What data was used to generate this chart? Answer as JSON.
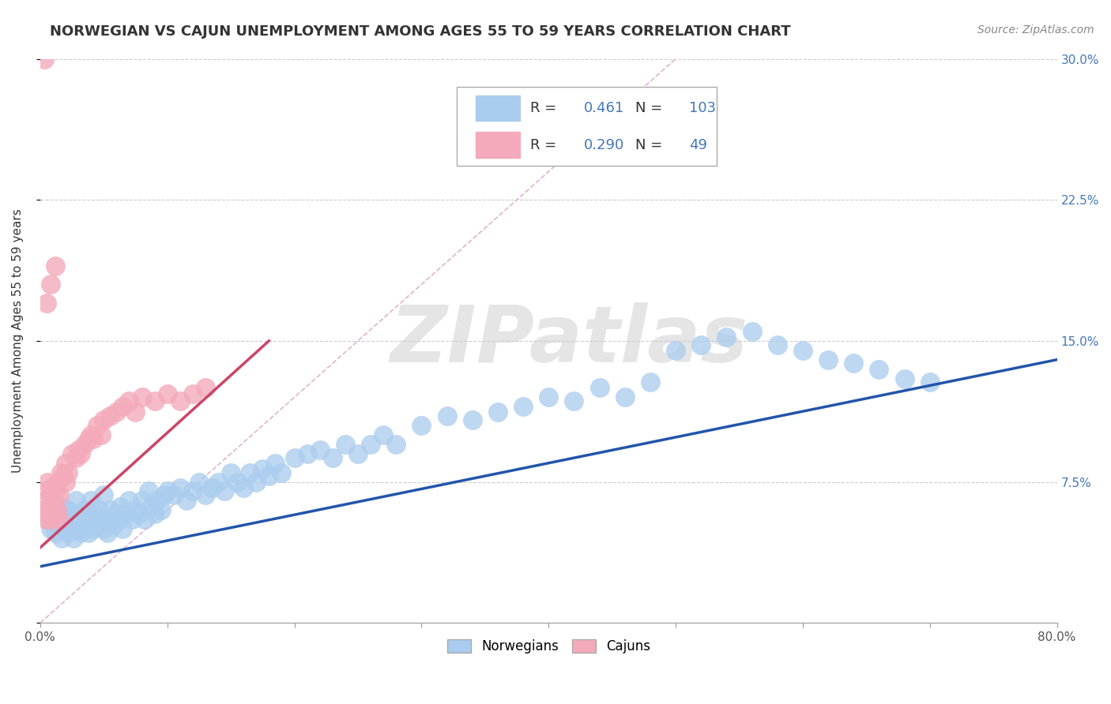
{
  "title": "NORWEGIAN VS CAJUN UNEMPLOYMENT AMONG AGES 55 TO 59 YEARS CORRELATION CHART",
  "source": "Source: ZipAtlas.com",
  "ylabel": "Unemployment Among Ages 55 to 59 years",
  "xlim": [
    0,
    0.8
  ],
  "ylim": [
    0,
    0.3
  ],
  "xticks": [
    0.0,
    0.1,
    0.2,
    0.3,
    0.4,
    0.5,
    0.6,
    0.7,
    0.8
  ],
  "xticklabels_show": [
    "0.0%",
    "",
    "",
    "",
    "",
    "",
    "",
    "",
    "80.0%"
  ],
  "yticks": [
    0.0,
    0.075,
    0.15,
    0.225,
    0.3
  ],
  "yticklabels_right": [
    "",
    "7.5%",
    "15.0%",
    "22.5%",
    "30.0%"
  ],
  "norwegian_color": "#aaccee",
  "cajun_color": "#f4aabb",
  "norwegian_line_color": "#2255aa",
  "cajun_line_color": "#cc4466",
  "ref_line_color": "#ddaacc",
  "legend_R_norwegian": "0.461",
  "legend_N_norwegian": "103",
  "legend_R_cajun": "0.290",
  "legend_N_cajun": "49",
  "watermark": "ZIPatlas",
  "norwegian_trend_x": [
    0.0,
    0.8
  ],
  "norwegian_trend_y": [
    0.03,
    0.14
  ],
  "cajun_trend_x": [
    0.0,
    0.18
  ],
  "cajun_trend_y": [
    0.04,
    0.15
  ],
  "ref_line_x": [
    0.0,
    0.5
  ],
  "ref_line_y": [
    0.0,
    0.3
  ],
  "norwegian_points_x": [
    0.005,
    0.008,
    0.01,
    0.012,
    0.015,
    0.015,
    0.017,
    0.018,
    0.02,
    0.02,
    0.022,
    0.022,
    0.025,
    0.025,
    0.026,
    0.028,
    0.03,
    0.03,
    0.032,
    0.033,
    0.035,
    0.036,
    0.038,
    0.04,
    0.04,
    0.042,
    0.043,
    0.045,
    0.046,
    0.048,
    0.05,
    0.05,
    0.052,
    0.053,
    0.055,
    0.056,
    0.058,
    0.06,
    0.062,
    0.063,
    0.065,
    0.068,
    0.07,
    0.072,
    0.075,
    0.078,
    0.08,
    0.082,
    0.085,
    0.088,
    0.09,
    0.092,
    0.095,
    0.098,
    0.1,
    0.105,
    0.11,
    0.115,
    0.12,
    0.125,
    0.13,
    0.135,
    0.14,
    0.145,
    0.15,
    0.155,
    0.16,
    0.165,
    0.17,
    0.175,
    0.18,
    0.185,
    0.19,
    0.2,
    0.21,
    0.22,
    0.23,
    0.24,
    0.25,
    0.26,
    0.27,
    0.28,
    0.3,
    0.32,
    0.34,
    0.36,
    0.38,
    0.4,
    0.42,
    0.44,
    0.46,
    0.48,
    0.5,
    0.52,
    0.54,
    0.56,
    0.58,
    0.6,
    0.62,
    0.64,
    0.66,
    0.68,
    0.7
  ],
  "norwegian_points_y": [
    0.055,
    0.05,
    0.06,
    0.048,
    0.052,
    0.058,
    0.045,
    0.062,
    0.05,
    0.055,
    0.048,
    0.06,
    0.052,
    0.058,
    0.045,
    0.065,
    0.05,
    0.058,
    0.048,
    0.055,
    0.06,
    0.052,
    0.048,
    0.055,
    0.065,
    0.05,
    0.058,
    0.052,
    0.06,
    0.055,
    0.05,
    0.068,
    0.055,
    0.048,
    0.06,
    0.055,
    0.052,
    0.058,
    0.055,
    0.062,
    0.05,
    0.058,
    0.065,
    0.055,
    0.06,
    0.058,
    0.065,
    0.055,
    0.07,
    0.062,
    0.058,
    0.065,
    0.06,
    0.068,
    0.07,
    0.068,
    0.072,
    0.065,
    0.07,
    0.075,
    0.068,
    0.072,
    0.075,
    0.07,
    0.08,
    0.075,
    0.072,
    0.08,
    0.075,
    0.082,
    0.078,
    0.085,
    0.08,
    0.088,
    0.09,
    0.092,
    0.088,
    0.095,
    0.09,
    0.095,
    0.1,
    0.095,
    0.105,
    0.11,
    0.108,
    0.112,
    0.115,
    0.12,
    0.118,
    0.125,
    0.12,
    0.128,
    0.145,
    0.148,
    0.152,
    0.155,
    0.148,
    0.145,
    0.14,
    0.138,
    0.135,
    0.13,
    0.128
  ],
  "cajun_points_x": [
    0.003,
    0.004,
    0.005,
    0.005,
    0.006,
    0.006,
    0.007,
    0.008,
    0.008,
    0.009,
    0.01,
    0.01,
    0.011,
    0.012,
    0.013,
    0.014,
    0.015,
    0.015,
    0.016,
    0.018,
    0.02,
    0.02,
    0.022,
    0.025,
    0.028,
    0.03,
    0.032,
    0.035,
    0.038,
    0.04,
    0.042,
    0.045,
    0.048,
    0.05,
    0.055,
    0.06,
    0.065,
    0.07,
    0.075,
    0.08,
    0.09,
    0.1,
    0.11,
    0.12,
    0.13,
    0.005,
    0.008,
    0.012,
    0.003
  ],
  "cajun_points_y": [
    0.06,
    0.065,
    0.055,
    0.07,
    0.058,
    0.075,
    0.06,
    0.068,
    0.055,
    0.072,
    0.06,
    0.065,
    0.058,
    0.07,
    0.06,
    0.075,
    0.068,
    0.055,
    0.08,
    0.078,
    0.075,
    0.085,
    0.08,
    0.09,
    0.088,
    0.092,
    0.09,
    0.095,
    0.098,
    0.1,
    0.098,
    0.105,
    0.1,
    0.108,
    0.11,
    0.112,
    0.115,
    0.118,
    0.112,
    0.12,
    0.118,
    0.122,
    0.118,
    0.122,
    0.125,
    0.17,
    0.18,
    0.19,
    0.3
  ],
  "grid_color": "#cccccc",
  "background_color": "#ffffff",
  "title_fontsize": 13,
  "axis_label_fontsize": 11,
  "tick_fontsize": 11,
  "legend_fontsize": 13,
  "tick_color": "#4477bb"
}
